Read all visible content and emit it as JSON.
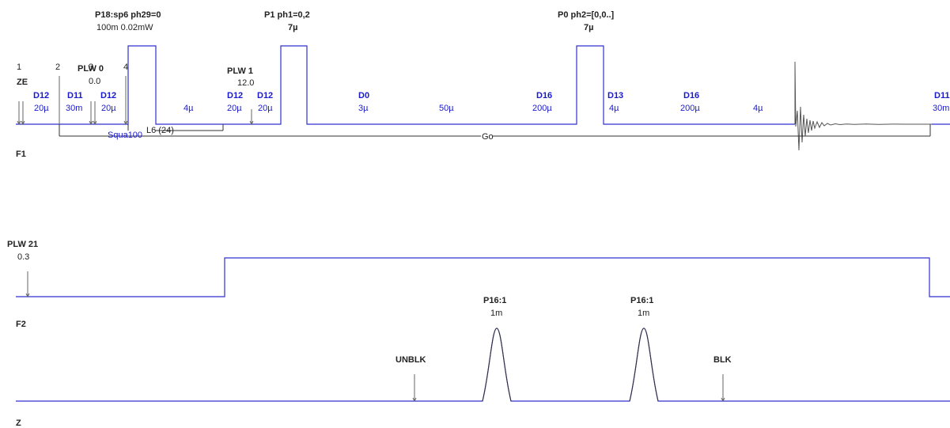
{
  "channels": {
    "f1": "F1",
    "f2": "F2",
    "z": "Z"
  },
  "points": {
    "p1": "1",
    "p2": "2",
    "p3": "3",
    "p4": "4",
    "ze": "ZE"
  },
  "power": {
    "plw0_name": "PLW 0",
    "plw0_value": "0.0",
    "plw1_name": "PLW 1",
    "plw1_value": "12.0",
    "plw21_name": "PLW 21",
    "plw21_value": "0.3"
  },
  "pulses": {
    "p18_name": "P18:sp6 ph29=0",
    "p18_value": "100m  0.02mW",
    "p1_name": "P1 ph1=0,2",
    "p1_value": "7µ",
    "p0_name": "P0 ph2=[0,0..]",
    "p0_value": "7µ",
    "grad1_name": "P16:1",
    "grad1_value": "1m",
    "grad2_name": "P16:1",
    "grad2_value": "1m"
  },
  "delays": [
    {
      "name": "D12",
      "value": "20µ"
    },
    {
      "name": "D11",
      "value": "30m"
    },
    {
      "name": "D12",
      "value": "20µ"
    },
    {
      "name": "",
      "value": "4µ"
    },
    {
      "name": "D12",
      "value": "20µ"
    },
    {
      "name": "D12",
      "value": "20µ"
    },
    {
      "name": "D0",
      "value": "3µ"
    },
    {
      "name": "",
      "value": "50µ"
    },
    {
      "name": "D16",
      "value": "200µ"
    },
    {
      "name": "D13",
      "value": "4µ"
    },
    {
      "name": "D16",
      "value": "200µ"
    },
    {
      "name": "",
      "value": "4µ"
    },
    {
      "name": "D11",
      "value": "30m"
    }
  ],
  "loops": {
    "shape": "Squa100",
    "l6": "L6 (24)",
    "go": "Go"
  },
  "gradient_events": {
    "unblk": "UNBLK",
    "blk": "BLK"
  },
  "colors": {
    "waveform": "#3030d0",
    "delay_label": "#1a1acc",
    "text": "#222222"
  }
}
